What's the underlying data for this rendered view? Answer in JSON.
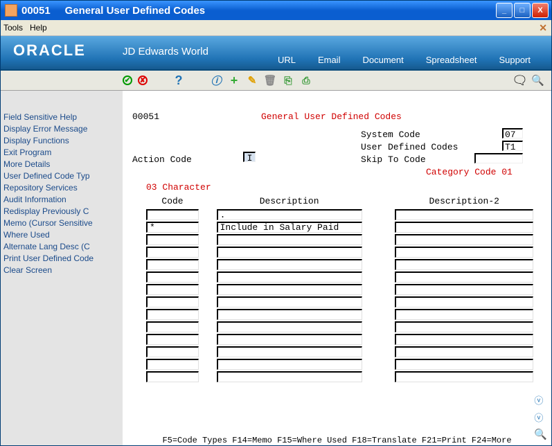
{
  "titlebar": {
    "code": "00051",
    "title": "General User Defined Codes"
  },
  "menubar": {
    "tools": "Tools",
    "help": "Help"
  },
  "brand": {
    "logo": "ORACLE",
    "sub": "JD Edwards World",
    "links": {
      "url": "URL",
      "email": "Email",
      "document": "Document",
      "spreadsheet": "Spreadsheet",
      "support": "Support"
    }
  },
  "sidebar": {
    "items": [
      "Field Sensitive Help",
      "Display Error Message",
      "Display Functions",
      "Exit Program",
      "More Details",
      "User Defined Code Typ",
      "Repository Services",
      "Audit Information",
      "Redisplay Previously C",
      "Memo (Cursor Sensitive",
      "Where Used",
      "Alternate Lang Desc (C",
      "Print User Defined Code",
      "Clear Screen"
    ]
  },
  "header": {
    "program": "00051",
    "screen_title": "General User Defined Codes",
    "system_code_label": "System Code",
    "system_code": "07",
    "udc_label": "User Defined Codes",
    "udc": "T1",
    "action_code_label": "Action Code",
    "action_code": "I",
    "skip_label": "Skip To Code",
    "skip": "",
    "category": "Category Code 01",
    "char_label": "03 Character"
  },
  "cols": {
    "code": "Code",
    "desc": "Description",
    "desc2": "Description-2"
  },
  "rows": [
    {
      "code": "",
      "desc": ".",
      "desc2": ""
    },
    {
      "code": "*",
      "desc": "Include in Salary Paid",
      "desc2": ""
    },
    {
      "code": "",
      "desc": "",
      "desc2": ""
    },
    {
      "code": "",
      "desc": "",
      "desc2": ""
    },
    {
      "code": "",
      "desc": "",
      "desc2": ""
    },
    {
      "code": "",
      "desc": "",
      "desc2": ""
    },
    {
      "code": "",
      "desc": "",
      "desc2": ""
    },
    {
      "code": "",
      "desc": "",
      "desc2": ""
    },
    {
      "code": "",
      "desc": "",
      "desc2": ""
    },
    {
      "code": "",
      "desc": "",
      "desc2": ""
    },
    {
      "code": "",
      "desc": "",
      "desc2": ""
    },
    {
      "code": "",
      "desc": "",
      "desc2": ""
    },
    {
      "code": "",
      "desc": "",
      "desc2": ""
    },
    {
      "code": "",
      "desc": "",
      "desc2": ""
    }
  ],
  "fkeys": "F5=Code Types   F14=Memo   F15=Where Used   F18=Translate   F21=Print   F24=More",
  "colors": {
    "red": "#d00000",
    "brand_blue": "#2073b5"
  }
}
